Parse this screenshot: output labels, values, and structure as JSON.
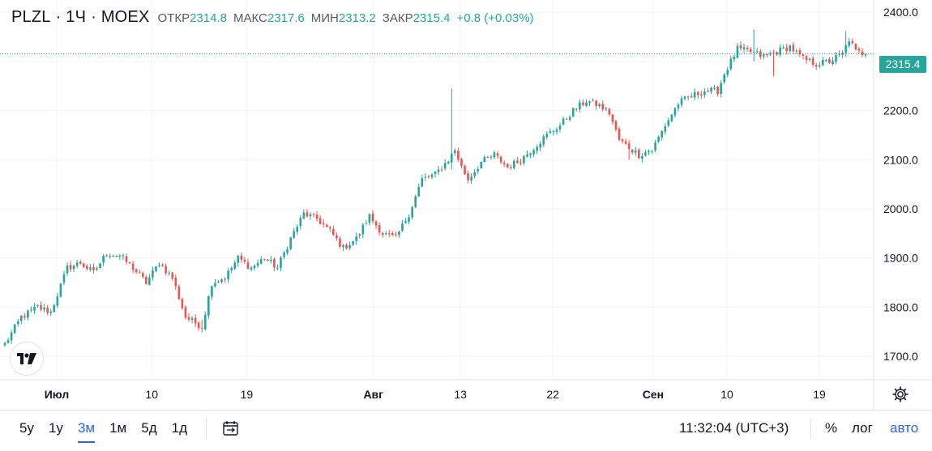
{
  "legend": {
    "symbol": "PLZL",
    "interval": "1Ч",
    "exchange": "MOEX",
    "separator": "·",
    "open_label": "ОТКР",
    "open": "2314.8",
    "high_label": "МАКС",
    "high": "2317.6",
    "low_label": "МИН",
    "low": "2313.2",
    "close_label": "ЗАКР",
    "close": "2315.4",
    "change": "+0.8 (+0.03%)"
  },
  "price_tag": "2315.4",
  "colors": {
    "up": "#26a69a",
    "down": "#ef5350",
    "grid": "#f0f3fa",
    "accent": "#2962ff",
    "axis_text": "#131722"
  },
  "chart_data": {
    "type": "candlestick",
    "title": "PLZL · 1Ч · MOEX",
    "y_ticks": [
      "2400.0",
      "2300.0",
      "2200.0",
      "2100.0",
      "2000.0",
      "1900.0",
      "1800.0",
      "1700.0"
    ],
    "ylim": [
      1654,
      2425
    ],
    "x_ticks": [
      "Июл",
      "10",
      "19",
      "Авг",
      "13",
      "22",
      "Сен",
      "10",
      "19"
    ],
    "last_price": 2315.4,
    "anchors": [
      [
        0,
        1725
      ],
      [
        5,
        1780
      ],
      [
        10,
        1800
      ],
      [
        14,
        1790
      ],
      [
        19,
        1880
      ],
      [
        23,
        1890
      ],
      [
        27,
        1870
      ],
      [
        31,
        1910
      ],
      [
        35,
        1905
      ],
      [
        39,
        1880
      ],
      [
        43,
        1850
      ],
      [
        47,
        1890
      ],
      [
        51,
        1860
      ],
      [
        55,
        1780
      ],
      [
        60,
        1760
      ],
      [
        63,
        1850
      ],
      [
        67,
        1860
      ],
      [
        71,
        1900
      ],
      [
        75,
        1880
      ],
      [
        79,
        1900
      ],
      [
        83,
        1880
      ],
      [
        87,
        1940
      ],
      [
        91,
        1990
      ],
      [
        95,
        1980
      ],
      [
        99,
        1955
      ],
      [
        103,
        1920
      ],
      [
        107,
        1940
      ],
      [
        111,
        1985
      ],
      [
        115,
        1950
      ],
      [
        119,
        1940
      ],
      [
        123,
        1990
      ],
      [
        127,
        2060
      ],
      [
        131,
        2070
      ],
      [
        135,
        2100
      ],
      [
        137,
        2120
      ],
      [
        139,
        2085
      ],
      [
        141,
        2060
      ],
      [
        145,
        2095
      ],
      [
        149,
        2110
      ],
      [
        153,
        2085
      ],
      [
        157,
        2100
      ],
      [
        161,
        2125
      ],
      [
        165,
        2150
      ],
      [
        169,
        2170
      ],
      [
        173,
        2200
      ],
      [
        177,
        2220
      ],
      [
        181,
        2210
      ],
      [
        184,
        2195
      ],
      [
        187,
        2140
      ],
      [
        190,
        2125
      ],
      [
        193,
        2110
      ],
      [
        197,
        2120
      ],
      [
        201,
        2170
      ],
      [
        205,
        2215
      ],
      [
        209,
        2230
      ],
      [
        213,
        2240
      ],
      [
        217,
        2240
      ],
      [
        219,
        2275
      ],
      [
        223,
        2325
      ],
      [
        227,
        2320
      ],
      [
        231,
        2310
      ],
      [
        235,
        2320
      ],
      [
        239,
        2330
      ],
      [
        243,
        2305
      ],
      [
        247,
        2295
      ],
      [
        251,
        2300
      ],
      [
        255,
        2315
      ],
      [
        257,
        2345
      ],
      [
        259,
        2320
      ],
      [
        262,
        2315
      ]
    ],
    "spikes": [
      {
        "at": 136,
        "high": 2245,
        "low": 2080
      },
      {
        "at": 190,
        "high": 2115,
        "low": 2100
      },
      {
        "at": 228,
        "high": 2365,
        "low": 2300
      },
      {
        "at": 234,
        "high": 2300,
        "low": 2270
      },
      {
        "at": 256,
        "high": 2362,
        "low": 2310
      },
      {
        "at": 60,
        "high": 1775,
        "low": 1748
      }
    ],
    "bar_count": 263
  },
  "bottom": {
    "ranges": [
      "5у",
      "1у",
      "3м",
      "1м",
      "5д",
      "1д"
    ],
    "active_range": "3м",
    "clock": "11:32:04 (UTC+3)",
    "pct": "%",
    "log": "лог",
    "auto": "авто"
  }
}
